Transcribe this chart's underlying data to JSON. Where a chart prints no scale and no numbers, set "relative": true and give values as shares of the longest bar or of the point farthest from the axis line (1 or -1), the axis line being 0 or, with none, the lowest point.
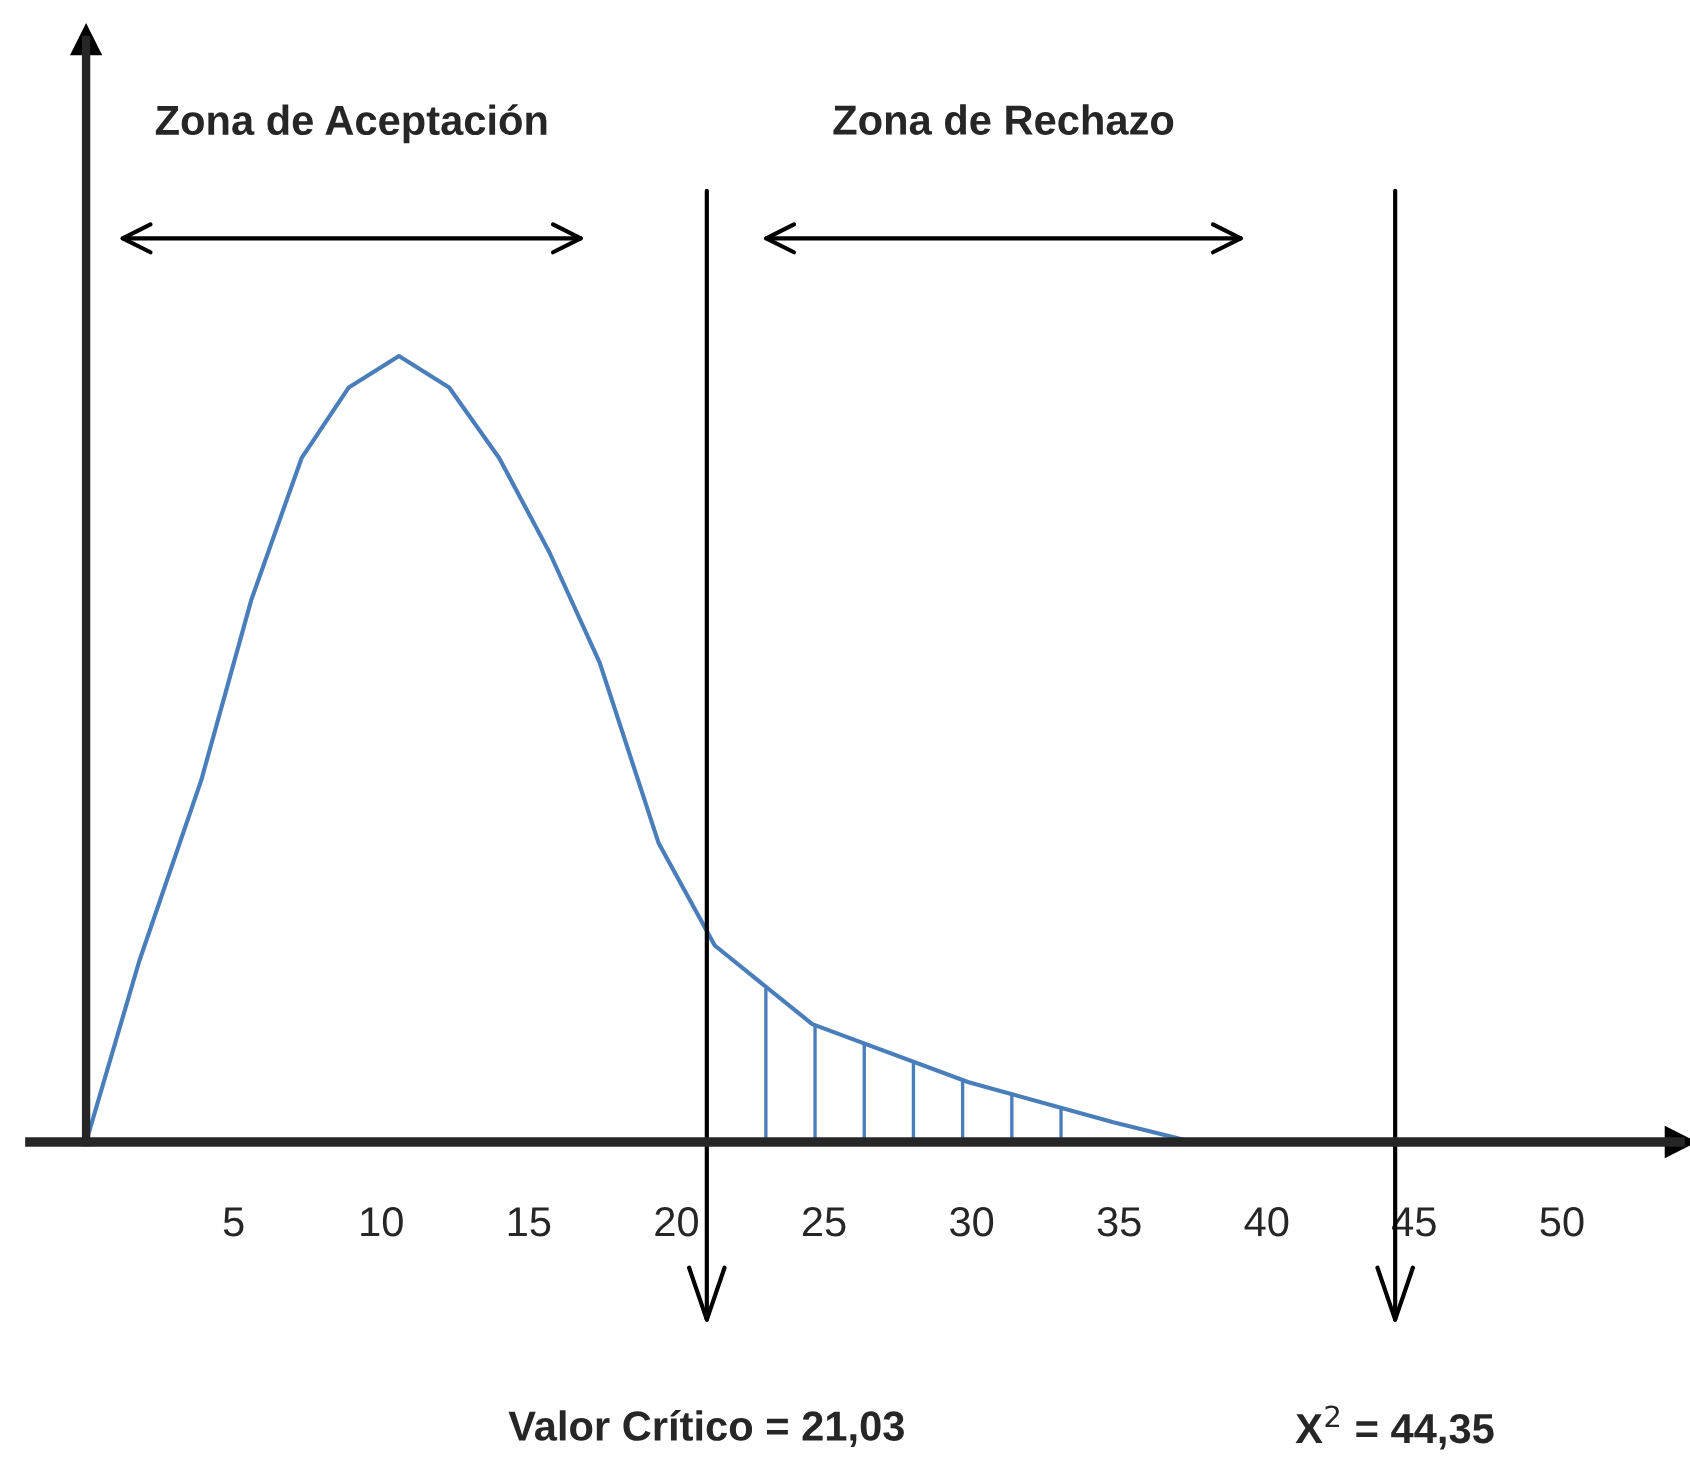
{
  "chart_data": {
    "type": "line",
    "relative": true,
    "x": [
      0,
      1.8,
      3.9,
      5.6,
      7.3,
      8.9,
      10.6,
      12.3,
      14.0,
      15.7,
      17.4,
      19.4,
      21.3,
      24.6,
      29.9,
      34.8,
      37.5
    ],
    "series": [
      {
        "color": "#4a7ebb",
        "values": [
          0,
          0.23,
          0.46,
          0.69,
          0.87,
          0.96,
          1.0,
          0.96,
          0.87,
          0.75,
          0.61,
          0.38,
          0.25,
          0.15,
          0.076,
          0.025,
          0
        ]
      }
    ],
    "xlim": [
      -1.9,
      54
    ],
    "xticks": [
      5,
      10,
      15,
      20,
      25,
      30,
      35,
      40,
      45,
      50
    ],
    "ref_lines": [
      {
        "axis": "x",
        "value": 21.03,
        "label": "Valor Crítico = 21,03",
        "color": "#000000"
      },
      {
        "axis": "x",
        "value": 44.35,
        "label": "X$^{2}$ = 44,35",
        "color": "#000000"
      }
    ],
    "annotations": [
      "Zona de Aceptación",
      "Zona de Rechazo"
    ],
    "grid": false,
    "legend": false,
    "marker": "none",
    "line_style": "solid"
  }
}
